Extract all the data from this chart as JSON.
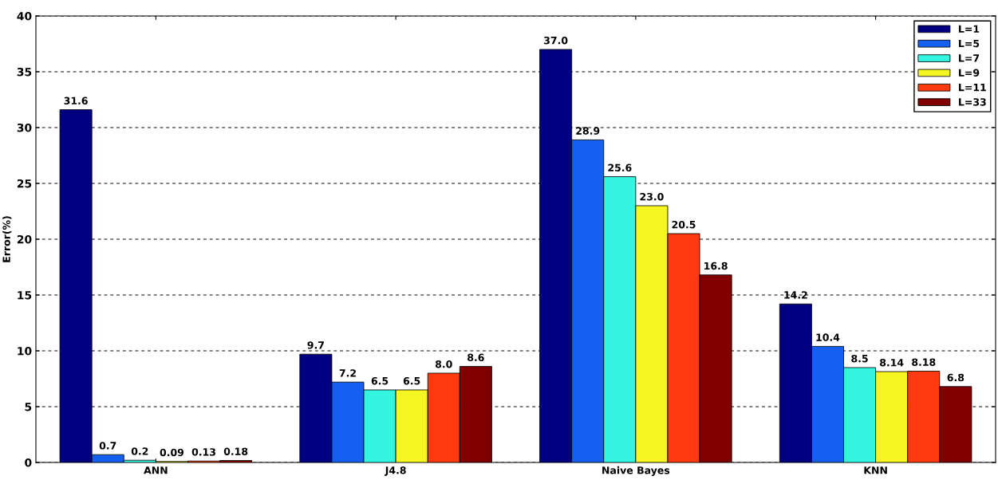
{
  "chart_data": {
    "type": "bar",
    "ylabel": "Error(%)",
    "categories": [
      "ANN",
      "J4.8",
      "Naive Bayes",
      "KNN"
    ],
    "series": [
      {
        "name": "L=1",
        "color": "#000080",
        "values": [
          31.6,
          9.7,
          37.0,
          14.2
        ],
        "value_labels": [
          "31.6",
          "9.7",
          "37.0",
          "14.2"
        ]
      },
      {
        "name": "L=5",
        "color": "#1560f0",
        "values": [
          0.7,
          7.2,
          28.9,
          10.4
        ],
        "value_labels": [
          "0.7",
          "7.2",
          "28.9",
          "10.4"
        ]
      },
      {
        "name": "L=7",
        "color": "#33f5e0",
        "values": [
          0.2,
          6.5,
          25.6,
          8.5
        ],
        "value_labels": [
          "0.2",
          "6.5",
          "25.6",
          "8.5"
        ]
      },
      {
        "name": "L=9",
        "color": "#f5f522",
        "values": [
          0.09,
          6.5,
          23.0,
          8.14
        ],
        "value_labels": [
          "0.09",
          "6.5",
          "23.0",
          "8.14"
        ]
      },
      {
        "name": "L=11",
        "color": "#ff3a10",
        "values": [
          0.13,
          8.0,
          20.5,
          8.18
        ],
        "value_labels": [
          "0.13",
          "8.0",
          "20.5",
          "8.18"
        ]
      },
      {
        "name": "L=33",
        "color": "#800000",
        "values": [
          0.18,
          8.6,
          16.8,
          6.8
        ],
        "value_labels": [
          "0.18",
          "8.6",
          "16.8",
          "6.8"
        ]
      }
    ],
    "ylim": [
      0,
      40
    ],
    "yticks": [
      0,
      5,
      10,
      15,
      20,
      25,
      30,
      35,
      40
    ],
    "grid": "y",
    "legend": "top right"
  }
}
